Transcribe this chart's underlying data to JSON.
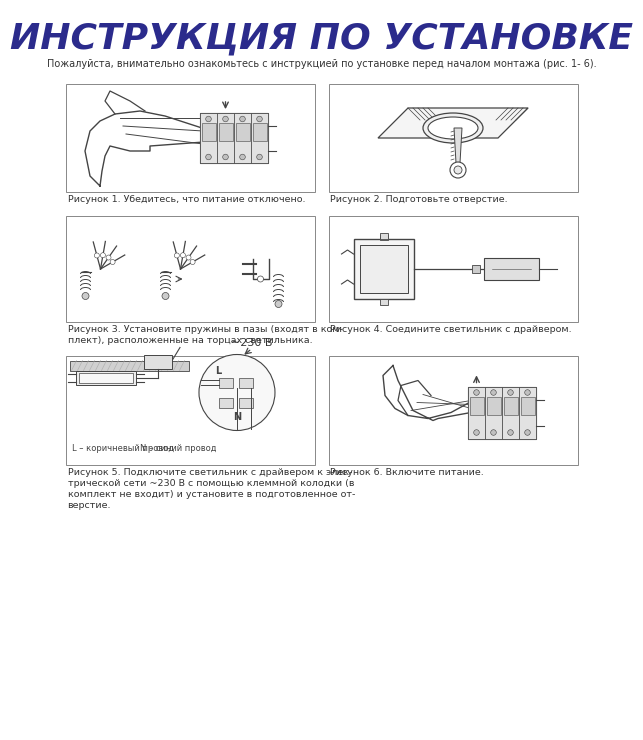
{
  "title": "ИНСТРУКЦИЯ ПО УСТАНОВКЕ",
  "title_color": "#2B2B8C",
  "title_fontsize": 26,
  "subtitle": "Пожалуйста, внимательно ознакомьтесь с инструкцией по установке перед началом монтажа (рис. 1- 6).",
  "subtitle_fontsize": 7.0,
  "background_color": "#ffffff",
  "captions": [
    "Рисунок 1. Убедитесь, что питание отключено.",
    "Рисунок 2. Подготовьте отверстие.",
    "Рисунок 3. Установите пружины в пазы (входят в ком-\nплект), расположенные на торцах светильника.",
    "Рисунок 4. Соедините светильник с драйвером.",
    "Рисунок 5. Подключите светильник с драйвером к элек-\nтрической сети ~230 В с помощью клеммной колодки (в\nкомплект не входит) и установите в подготовленное от-\nверстие.",
    "Рисунок 6. Включите питание."
  ],
  "lc": "#444444"
}
